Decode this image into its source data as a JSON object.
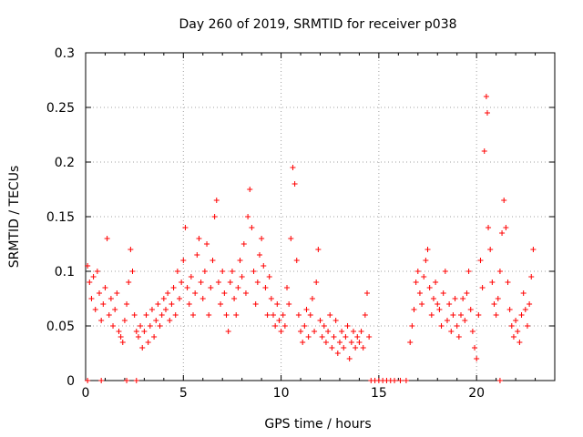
{
  "chart_data": {
    "type": "scatter",
    "title": "Day 260 of 2019, SRMTID for receiver p038",
    "xlabel": "GPS time / hours",
    "ylabel": "SRMTID / TECUs",
    "xlim": [
      0,
      24
    ],
    "ylim": [
      0,
      0.3
    ],
    "xticks": [
      0,
      5,
      10,
      15,
      20
    ],
    "yticks": [
      0,
      0.05,
      0.1,
      0.15,
      0.2,
      0.25,
      0.3
    ],
    "xtick_labels": [
      "0",
      "5",
      "10",
      "15",
      "20"
    ],
    "ytick_labels": [
      "0",
      "0.05",
      "0.1",
      "0.15",
      "0.2",
      "0.25",
      "0.3"
    ],
    "grid": true,
    "marker": "+",
    "series": [
      {
        "name": "SRMTID",
        "color": "#ff0000",
        "points": [
          [
            0.1,
            0.105
          ],
          [
            0.2,
            0.09
          ],
          [
            0.3,
            0.075
          ],
          [
            0.4,
            0.095
          ],
          [
            0.5,
            0.065
          ],
          [
            0.6,
            0.1
          ],
          [
            0.7,
            0.08
          ],
          [
            0.8,
            0.055
          ],
          [
            0.9,
            0.07
          ],
          [
            1.0,
            0.085
          ],
          [
            1.1,
            0.13
          ],
          [
            1.2,
            0.06
          ],
          [
            1.3,
            0.075
          ],
          [
            1.4,
            0.05
          ],
          [
            1.5,
            0.065
          ],
          [
            1.6,
            0.08
          ],
          [
            1.7,
            0.045
          ],
          [
            1.8,
            0.04
          ],
          [
            1.9,
            0.035
          ],
          [
            2.0,
            0.055
          ],
          [
            2.1,
            0.07
          ],
          [
            2.2,
            0.09
          ],
          [
            2.3,
            0.12
          ],
          [
            2.4,
            0.1
          ],
          [
            2.5,
            0.06
          ],
          [
            2.6,
            0.045
          ],
          [
            2.7,
            0.04
          ],
          [
            2.8,
            0.05
          ],
          [
            2.9,
            0.03
          ],
          [
            3.0,
            0.045
          ],
          [
            3.1,
            0.06
          ],
          [
            3.2,
            0.035
          ],
          [
            3.3,
            0.05
          ],
          [
            3.4,
            0.065
          ],
          [
            3.5,
            0.04
          ],
          [
            3.6,
            0.055
          ],
          [
            3.7,
            0.07
          ],
          [
            3.8,
            0.05
          ],
          [
            3.9,
            0.06
          ],
          [
            4.0,
            0.075
          ],
          [
            4.1,
            0.065
          ],
          [
            4.2,
            0.08
          ],
          [
            4.3,
            0.055
          ],
          [
            4.4,
            0.07
          ],
          [
            4.5,
            0.085
          ],
          [
            4.6,
            0.06
          ],
          [
            4.7,
            0.1
          ],
          [
            4.8,
            0.075
          ],
          [
            4.9,
            0.09
          ],
          [
            5.0,
            0.11
          ],
          [
            5.1,
            0.14
          ],
          [
            5.2,
            0.085
          ],
          [
            5.3,
            0.07
          ],
          [
            5.4,
            0.095
          ],
          [
            5.5,
            0.06
          ],
          [
            5.6,
            0.08
          ],
          [
            5.7,
            0.115
          ],
          [
            5.8,
            0.13
          ],
          [
            5.9,
            0.09
          ],
          [
            6.0,
            0.075
          ],
          [
            6.1,
            0.1
          ],
          [
            6.2,
            0.125
          ],
          [
            6.3,
            0.06
          ],
          [
            6.4,
            0.085
          ],
          [
            6.5,
            0.11
          ],
          [
            6.6,
            0.15
          ],
          [
            6.7,
            0.165
          ],
          [
            6.8,
            0.09
          ],
          [
            6.9,
            0.07
          ],
          [
            7.0,
            0.1
          ],
          [
            7.1,
            0.08
          ],
          [
            7.2,
            0.06
          ],
          [
            7.3,
            0.045
          ],
          [
            7.4,
            0.09
          ],
          [
            7.5,
            0.1
          ],
          [
            7.6,
            0.075
          ],
          [
            7.7,
            0.06
          ],
          [
            7.8,
            0.085
          ],
          [
            7.9,
            0.11
          ],
          [
            8.0,
            0.095
          ],
          [
            8.1,
            0.125
          ],
          [
            8.2,
            0.08
          ],
          [
            8.3,
            0.15
          ],
          [
            8.4,
            0.175
          ],
          [
            8.5,
            0.14
          ],
          [
            8.6,
            0.1
          ],
          [
            8.7,
            0.07
          ],
          [
            8.8,
            0.09
          ],
          [
            8.9,
            0.115
          ],
          [
            9.0,
            0.13
          ],
          [
            9.1,
            0.105
          ],
          [
            9.2,
            0.085
          ],
          [
            9.3,
            0.06
          ],
          [
            9.4,
            0.095
          ],
          [
            9.5,
            0.075
          ],
          [
            9.6,
            0.06
          ],
          [
            9.7,
            0.05
          ],
          [
            9.8,
            0.07
          ],
          [
            9.9,
            0.055
          ],
          [
            10.0,
            0.045
          ],
          [
            10.1,
            0.06
          ],
          [
            10.2,
            0.05
          ],
          [
            10.3,
            0.085
          ],
          [
            10.4,
            0.07
          ],
          [
            10.5,
            0.13
          ],
          [
            10.6,
            0.195
          ],
          [
            10.7,
            0.18
          ],
          [
            10.8,
            0.11
          ],
          [
            10.9,
            0.06
          ],
          [
            11.0,
            0.045
          ],
          [
            11.1,
            0.035
          ],
          [
            11.2,
            0.05
          ],
          [
            11.3,
            0.065
          ],
          [
            11.4,
            0.04
          ],
          [
            11.5,
            0.06
          ],
          [
            11.6,
            0.075
          ],
          [
            11.7,
            0.045
          ],
          [
            11.8,
            0.09
          ],
          [
            11.9,
            0.12
          ],
          [
            12.0,
            0.055
          ],
          [
            12.1,
            0.04
          ],
          [
            12.2,
            0.05
          ],
          [
            12.3,
            0.035
          ],
          [
            12.4,
            0.045
          ],
          [
            12.5,
            0.06
          ],
          [
            12.6,
            0.03
          ],
          [
            12.7,
            0.04
          ],
          [
            12.8,
            0.055
          ],
          [
            12.9,
            0.025
          ],
          [
            13.0,
            0.035
          ],
          [
            13.1,
            0.045
          ],
          [
            13.2,
            0.03
          ],
          [
            13.3,
            0.04
          ],
          [
            13.4,
            0.05
          ],
          [
            13.5,
            0.02
          ],
          [
            13.6,
            0.035
          ],
          [
            13.7,
            0.045
          ],
          [
            13.8,
            0.03
          ],
          [
            13.9,
            0.04
          ],
          [
            14.0,
            0.035
          ],
          [
            14.1,
            0.045
          ],
          [
            14.2,
            0.03
          ],
          [
            14.3,
            0.06
          ],
          [
            14.4,
            0.08
          ],
          [
            14.5,
            0.04
          ],
          [
            16.6,
            0.035
          ],
          [
            16.7,
            0.05
          ],
          [
            16.8,
            0.065
          ],
          [
            16.9,
            0.09
          ],
          [
            17.0,
            0.1
          ],
          [
            17.1,
            0.08
          ],
          [
            17.2,
            0.07
          ],
          [
            17.3,
            0.095
          ],
          [
            17.4,
            0.11
          ],
          [
            17.5,
            0.12
          ],
          [
            17.6,
            0.085
          ],
          [
            17.7,
            0.06
          ],
          [
            17.8,
            0.075
          ],
          [
            17.9,
            0.09
          ],
          [
            18.0,
            0.07
          ],
          [
            18.1,
            0.065
          ],
          [
            18.2,
            0.05
          ],
          [
            18.3,
            0.08
          ],
          [
            18.4,
            0.1
          ],
          [
            18.5,
            0.055
          ],
          [
            18.6,
            0.07
          ],
          [
            18.7,
            0.045
          ],
          [
            18.8,
            0.06
          ],
          [
            18.9,
            0.075
          ],
          [
            19.0,
            0.05
          ],
          [
            19.1,
            0.04
          ],
          [
            19.2,
            0.06
          ],
          [
            19.3,
            0.075
          ],
          [
            19.4,
            0.055
          ],
          [
            19.5,
            0.08
          ],
          [
            19.6,
            0.1
          ],
          [
            19.7,
            0.065
          ],
          [
            19.8,
            0.045
          ],
          [
            19.9,
            0.03
          ],
          [
            20.0,
            0.02
          ],
          [
            20.1,
            0.06
          ],
          [
            20.2,
            0.11
          ],
          [
            20.3,
            0.085
          ],
          [
            20.4,
            0.21
          ],
          [
            20.5,
            0.26
          ],
          [
            20.55,
            0.245
          ],
          [
            20.6,
            0.14
          ],
          [
            20.7,
            0.12
          ],
          [
            20.8,
            0.09
          ],
          [
            20.9,
            0.07
          ],
          [
            21.0,
            0.06
          ],
          [
            21.1,
            0.075
          ],
          [
            21.2,
            0.1
          ],
          [
            21.3,
            0.135
          ],
          [
            21.4,
            0.165
          ],
          [
            21.5,
            0.14
          ],
          [
            21.6,
            0.09
          ],
          [
            21.7,
            0.065
          ],
          [
            21.8,
            0.05
          ],
          [
            21.9,
            0.04
          ],
          [
            22.0,
            0.055
          ],
          [
            22.1,
            0.045
          ],
          [
            22.2,
            0.035
          ],
          [
            22.3,
            0.06
          ],
          [
            22.4,
            0.08
          ],
          [
            22.5,
            0.065
          ],
          [
            22.6,
            0.05
          ],
          [
            22.7,
            0.07
          ],
          [
            22.8,
            0.095
          ],
          [
            22.9,
            0.12
          ],
          [
            0.1,
            0
          ],
          [
            0.8,
            0
          ],
          [
            2.1,
            0
          ],
          [
            2.6,
            0
          ],
          [
            14.6,
            0
          ],
          [
            14.8,
            0
          ],
          [
            15.0,
            0
          ],
          [
            15.2,
            0
          ],
          [
            15.4,
            0
          ],
          [
            15.6,
            0
          ],
          [
            15.8,
            0
          ],
          [
            16.1,
            0
          ],
          [
            16.4,
            0
          ],
          [
            21.2,
            0
          ]
        ]
      }
    ]
  }
}
